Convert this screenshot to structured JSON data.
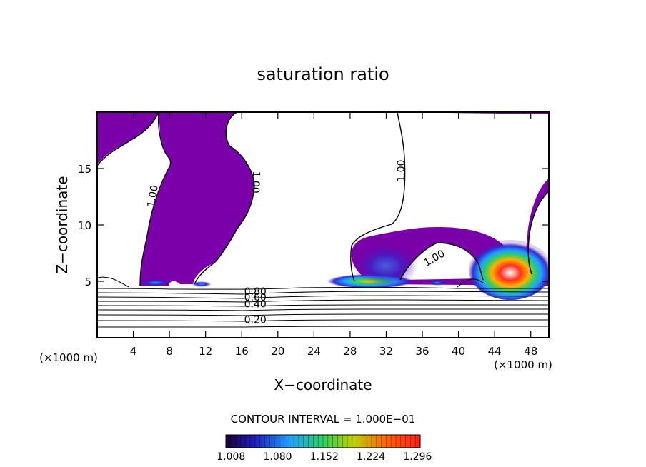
{
  "chart_data": {
    "type": "contour",
    "title": "saturation ratio",
    "xlabel": "X−coordinate",
    "ylabel": "Z−coordinate",
    "x_unit_label_left": "(×1000 m)",
    "x_unit_label_right": "(×1000 m)",
    "xlim": [
      0,
      50
    ],
    "ylim": [
      0,
      20
    ],
    "x_ticks": [
      4,
      8,
      12,
      16,
      20,
      24,
      28,
      32,
      36,
      40,
      44,
      48
    ],
    "y_ticks": [
      5,
      10,
      15
    ],
    "contour_interval_label": "CONTOUR INTERVAL = 1.000E−01",
    "contour_labels": [
      {
        "text": "1.00",
        "x": 6.5,
        "z": 12.5
      },
      {
        "text": "1.00",
        "x": 17.2,
        "z": 13.8
      },
      {
        "text": "1.00",
        "x": 34.0,
        "z": 14.8
      },
      {
        "text": "1.00",
        "x": 37.5,
        "z": 6.8
      },
      {
        "text": "0.80",
        "x": 17.5,
        "z": 3.8
      },
      {
        "text": "0.60",
        "x": 17.5,
        "z": 3.3
      },
      {
        "text": "0.40",
        "x": 17.5,
        "z": 2.7
      },
      {
        "text": "0.20",
        "x": 17.5,
        "z": 1.3
      }
    ],
    "colorbar": {
      "min": 1.0,
      "max": 1.3,
      "tick_labels": [
        "1.008",
        "1.080",
        "1.152",
        "1.224",
        "1.296"
      ],
      "colors": [
        "#1a0030",
        "#2020c0",
        "#20a0ff",
        "#30d060",
        "#c0d000",
        "#ff6000",
        "#ff2020"
      ]
    },
    "supersaturated_color": "#7a00aa",
    "grid": false,
    "legend": "colorbar-bottom"
  }
}
